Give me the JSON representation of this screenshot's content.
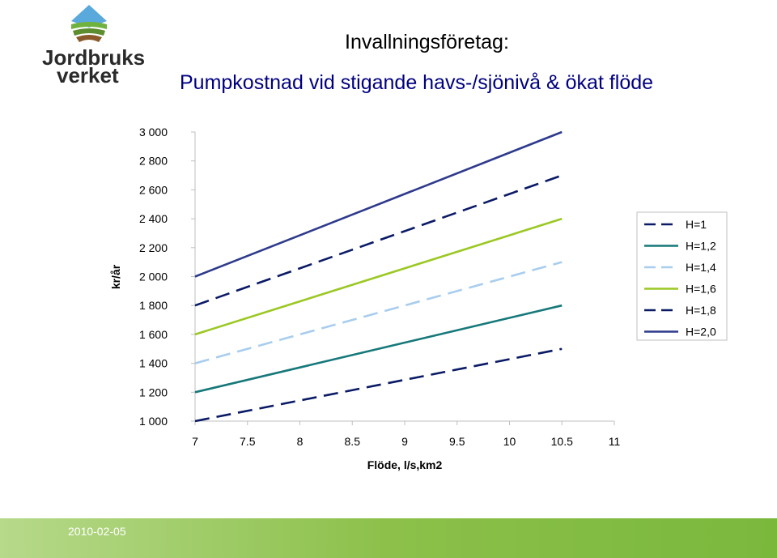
{
  "logo": {
    "line1": "Jordbruks",
    "line2": "verket"
  },
  "header": {
    "title": "Invallningsföretag:",
    "subtitle": "Pumpkostnad vid stigande havs-/sjönivå & ökat flöde"
  },
  "footer": {
    "date": "2010-02-05"
  },
  "colors": {
    "accent_green": "#7ab83c",
    "footer_green": "#8cc04a"
  },
  "chart_data": {
    "type": "line",
    "xlabel": "Flöde, l/s,km2",
    "ylabel": "kr/år",
    "xlim": [
      7,
      11
    ],
    "ylim": [
      1000,
      3000
    ],
    "xticks": [
      "7",
      "7.5",
      "8",
      "8.5",
      "9",
      "9.5",
      "10",
      "10.5",
      "11"
    ],
    "yticks": [
      "1 000",
      "1 200",
      "1 400",
      "1 600",
      "1 800",
      "2 000",
      "2 200",
      "2 400",
      "2 600",
      "2 800",
      "3 000"
    ],
    "grid": false,
    "legend_position": "right",
    "x": [
      7,
      10.5
    ],
    "series": [
      {
        "name": "H=1",
        "values": [
          1000,
          1500
        ],
        "color": "#0a1a66",
        "dash": true
      },
      {
        "name": "H=1,2",
        "values": [
          1200,
          1800
        ],
        "color": "#17787a",
        "dash": false
      },
      {
        "name": "H=1,4",
        "values": [
          1400,
          2100
        ],
        "color": "#a8cdee",
        "dash": true
      },
      {
        "name": "H=1,6",
        "values": [
          1600,
          2400
        ],
        "color": "#9bc824",
        "dash": false
      },
      {
        "name": "H=1,8",
        "values": [
          1800,
          2700
        ],
        "color": "#0a1a66",
        "dash": true
      },
      {
        "name": "H=2,0",
        "values": [
          2000,
          3000
        ],
        "color": "#2e3a8c",
        "dash": false
      }
    ]
  }
}
